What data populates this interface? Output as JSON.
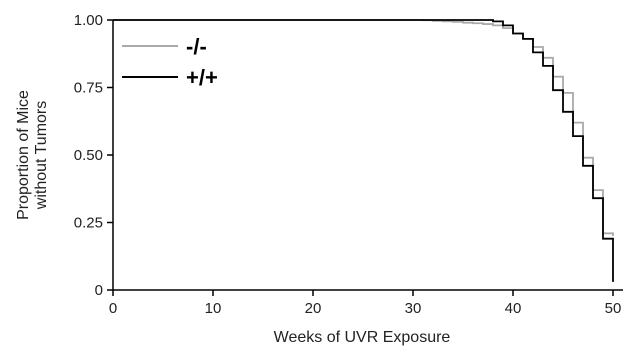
{
  "chart_data": {
    "type": "line",
    "title": "",
    "xlabel": "Weeks of UVR Exposure",
    "ylabel_lines": [
      "Proportion of Mice",
      "without Tumors"
    ],
    "xlim": [
      0,
      51
    ],
    "ylim": [
      0,
      1
    ],
    "xticks": [
      0,
      10,
      20,
      30,
      40,
      50
    ],
    "yticks": [
      0,
      0.25,
      0.5,
      0.75,
      1.0
    ],
    "xtick_labels": [
      "0",
      "10",
      "20",
      "30",
      "40",
      "50"
    ],
    "ytick_labels": [
      "0",
      "0.25",
      "0.50",
      "0.75",
      "1.00"
    ],
    "grid": false,
    "legend": "top-left",
    "series": [
      {
        "name": "-/-",
        "color": "#aaaaaa",
        "step": true,
        "points": [
          [
            0,
            1.0
          ],
          [
            30,
            1.0
          ],
          [
            31,
            0.999
          ],
          [
            32,
            0.997
          ],
          [
            33,
            0.995
          ],
          [
            34,
            0.993
          ],
          [
            35,
            0.99
          ],
          [
            36,
            0.988
          ],
          [
            37,
            0.985
          ],
          [
            38,
            0.98
          ],
          [
            39,
            0.97
          ],
          [
            40,
            0.95
          ],
          [
            41,
            0.93
          ],
          [
            42,
            0.9
          ],
          [
            43,
            0.86
          ],
          [
            44,
            0.79
          ],
          [
            45,
            0.73
          ],
          [
            46,
            0.62
          ],
          [
            47,
            0.49
          ],
          [
            48,
            0.37
          ],
          [
            49,
            0.21
          ],
          [
            50,
            0.2
          ]
        ]
      },
      {
        "name": "+/+",
        "color": "#000000",
        "step": true,
        "points": [
          [
            0,
            1.0
          ],
          [
            37,
            1.0
          ],
          [
            38,
            0.995
          ],
          [
            39,
            0.98
          ],
          [
            40,
            0.95
          ],
          [
            41,
            0.93
          ],
          [
            42,
            0.88
          ],
          [
            43,
            0.83
          ],
          [
            44,
            0.74
          ],
          [
            45,
            0.66
          ],
          [
            46,
            0.57
          ],
          [
            47,
            0.46
          ],
          [
            48,
            0.34
          ],
          [
            49,
            0.19
          ],
          [
            50,
            0.03
          ]
        ]
      }
    ]
  }
}
